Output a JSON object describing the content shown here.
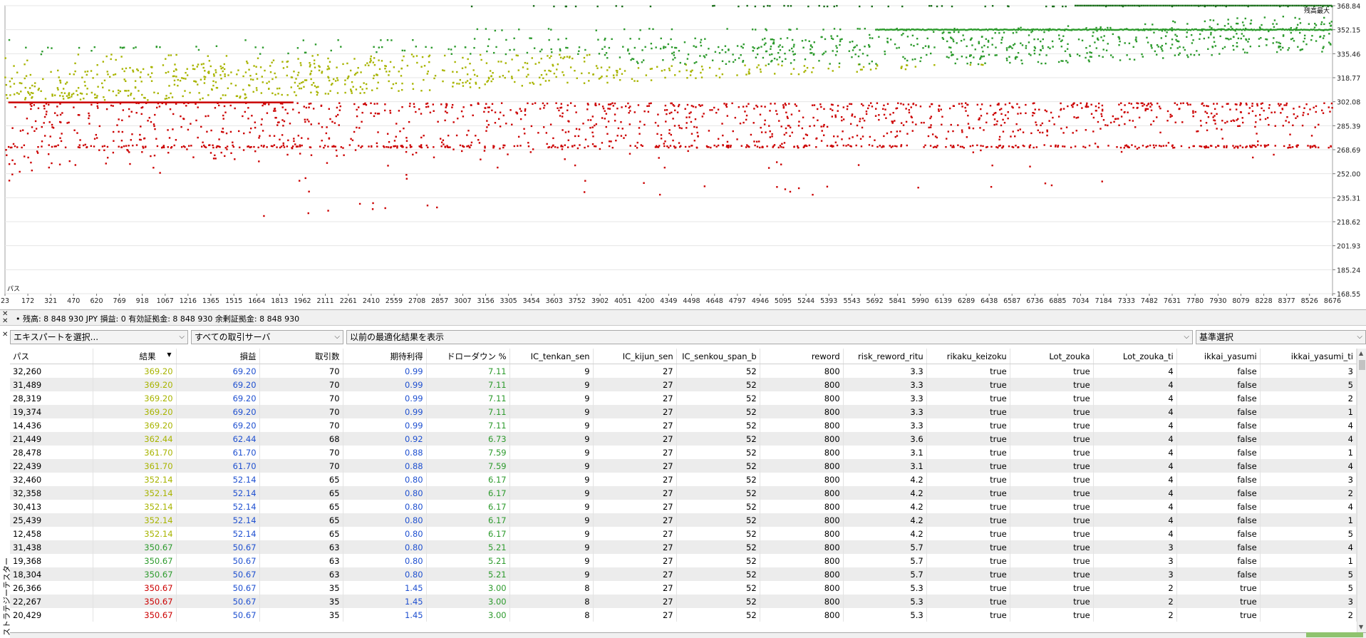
{
  "chart": {
    "legend_label": "残高最大",
    "corner_label": "パス",
    "y_ticks": [
      "368.84",
      "352.15",
      "335.46",
      "318.77",
      "302.08",
      "285.39",
      "268.69",
      "252.00",
      "235.31",
      "218.62",
      "201.93",
      "185.24",
      "168.55"
    ],
    "x_ticks": [
      "23",
      "172",
      "321",
      "470",
      "620",
      "769",
      "918",
      "1067",
      "1216",
      "1365",
      "1515",
      "1664",
      "1813",
      "1962",
      "2111",
      "2261",
      "2410",
      "2559",
      "2708",
      "2857",
      "3007",
      "3156",
      "3305",
      "3454",
      "3603",
      "3752",
      "3902",
      "4051",
      "4200",
      "4349",
      "4498",
      "4648",
      "4797",
      "4946",
      "5095",
      "5244",
      "5393",
      "5543",
      "5692",
      "5841",
      "5990",
      "6139",
      "6289",
      "6438",
      "6587",
      "6736",
      "6885",
      "7034",
      "7184",
      "7333",
      "7482",
      "7631",
      "7780",
      "7930",
      "8079",
      "8228",
      "8377",
      "8526",
      "8676"
    ],
    "colors": {
      "loss": "#cc0000",
      "mid": "#a8b400",
      "high": "#2c9a2c",
      "top": "#1a6e1a"
    }
  },
  "status": {
    "close_icon": "close-icon",
    "text": "•  残高: 8 848 930 JPY  損益: 0  有効証拠金: 8 848 930  余剰証拠金: 8 848 930"
  },
  "filters": {
    "expert": "エキスパートを選択...",
    "server": "すべての取引サーバ",
    "previous": "以前の最適化結果を表示",
    "criterion": "基準選択"
  },
  "table": {
    "columns": [
      "パス",
      "結果",
      "損益",
      "取引数",
      "期待利得",
      "ドローダウン %",
      "IC_tenkan_sen",
      "IC_kijun_sen",
      "IC_senkou_span_b",
      "reword",
      "risk_reword_ritu",
      "rikaku_keizoku",
      "Lot_zouka",
      "Lot_zouka_ti",
      "ikkai_yasumi",
      "ikkai_yasumi_ti"
    ],
    "sort_indicator": "▼",
    "rows": [
      [
        "32,260",
        "369.20",
        "69.20",
        "70",
        "0.99",
        "7.11",
        "9",
        "27",
        "52",
        "800",
        "3.3",
        "true",
        "true",
        "4",
        "false",
        "3"
      ],
      [
        "31,489",
        "369.20",
        "69.20",
        "70",
        "0.99",
        "7.11",
        "9",
        "27",
        "52",
        "800",
        "3.3",
        "true",
        "true",
        "4",
        "false",
        "5"
      ],
      [
        "28,319",
        "369.20",
        "69.20",
        "70",
        "0.99",
        "7.11",
        "9",
        "27",
        "52",
        "800",
        "3.3",
        "true",
        "true",
        "4",
        "false",
        "2"
      ],
      [
        "19,374",
        "369.20",
        "69.20",
        "70",
        "0.99",
        "7.11",
        "9",
        "27",
        "52",
        "800",
        "3.3",
        "true",
        "true",
        "4",
        "false",
        "1"
      ],
      [
        "14,436",
        "369.20",
        "69.20",
        "70",
        "0.99",
        "7.11",
        "9",
        "27",
        "52",
        "800",
        "3.3",
        "true",
        "true",
        "4",
        "false",
        "4"
      ],
      [
        "21,449",
        "362.44",
        "62.44",
        "68",
        "0.92",
        "6.73",
        "9",
        "27",
        "52",
        "800",
        "3.6",
        "true",
        "true",
        "4",
        "false",
        "4"
      ],
      [
        "28,478",
        "361.70",
        "61.70",
        "70",
        "0.88",
        "7.59",
        "9",
        "27",
        "52",
        "800",
        "3.1",
        "true",
        "true",
        "4",
        "false",
        "1"
      ],
      [
        "22,439",
        "361.70",
        "61.70",
        "70",
        "0.88",
        "7.59",
        "9",
        "27",
        "52",
        "800",
        "3.1",
        "true",
        "true",
        "4",
        "false",
        "4"
      ],
      [
        "32,460",
        "352.14",
        "52.14",
        "65",
        "0.80",
        "6.17",
        "9",
        "27",
        "52",
        "800",
        "4.2",
        "true",
        "true",
        "4",
        "false",
        "3"
      ],
      [
        "32,358",
        "352.14",
        "52.14",
        "65",
        "0.80",
        "6.17",
        "9",
        "27",
        "52",
        "800",
        "4.2",
        "true",
        "true",
        "4",
        "false",
        "2"
      ],
      [
        "30,413",
        "352.14",
        "52.14",
        "65",
        "0.80",
        "6.17",
        "9",
        "27",
        "52",
        "800",
        "4.2",
        "true",
        "true",
        "4",
        "false",
        "4"
      ],
      [
        "25,439",
        "352.14",
        "52.14",
        "65",
        "0.80",
        "6.17",
        "9",
        "27",
        "52",
        "800",
        "4.2",
        "true",
        "true",
        "4",
        "false",
        "1"
      ],
      [
        "12,458",
        "352.14",
        "52.14",
        "65",
        "0.80",
        "6.17",
        "9",
        "27",
        "52",
        "800",
        "4.2",
        "true",
        "true",
        "4",
        "false",
        "5"
      ],
      [
        "31,438",
        "350.67",
        "50.67",
        "63",
        "0.80",
        "5.21",
        "9",
        "27",
        "52",
        "800",
        "5.7",
        "true",
        "true",
        "3",
        "false",
        "4"
      ],
      [
        "19,368",
        "350.67",
        "50.67",
        "63",
        "0.80",
        "5.21",
        "9",
        "27",
        "52",
        "800",
        "5.7",
        "true",
        "true",
        "3",
        "false",
        "1"
      ],
      [
        "18,304",
        "350.67",
        "50.67",
        "63",
        "0.80",
        "5.21",
        "9",
        "27",
        "52",
        "800",
        "5.7",
        "true",
        "true",
        "3",
        "false",
        "5"
      ],
      [
        "26,366",
        "350.67",
        "50.67",
        "35",
        "1.45",
        "3.00",
        "8",
        "27",
        "52",
        "800",
        "5.3",
        "true",
        "true",
        "2",
        "true",
        "5"
      ],
      [
        "22,267",
        "350.67",
        "50.67",
        "35",
        "1.45",
        "3.00",
        "8",
        "27",
        "52",
        "800",
        "5.3",
        "true",
        "true",
        "2",
        "true",
        "3"
      ],
      [
        "20,429",
        "350.67",
        "50.67",
        "35",
        "1.45",
        "3.00",
        "8",
        "27",
        "52",
        "800",
        "5.3",
        "true",
        "true",
        "2",
        "true",
        "2"
      ]
    ],
    "cell_colors": {
      "result_high": "#a8b400",
      "result_mid": "#2c9a2c",
      "result_low": "#cc0000",
      "profit": "#1f50d0",
      "expected": "#1f50d0",
      "drawdown": "#2c9a2c"
    }
  },
  "side_panel": {
    "label": "ストラテジーテスター"
  }
}
